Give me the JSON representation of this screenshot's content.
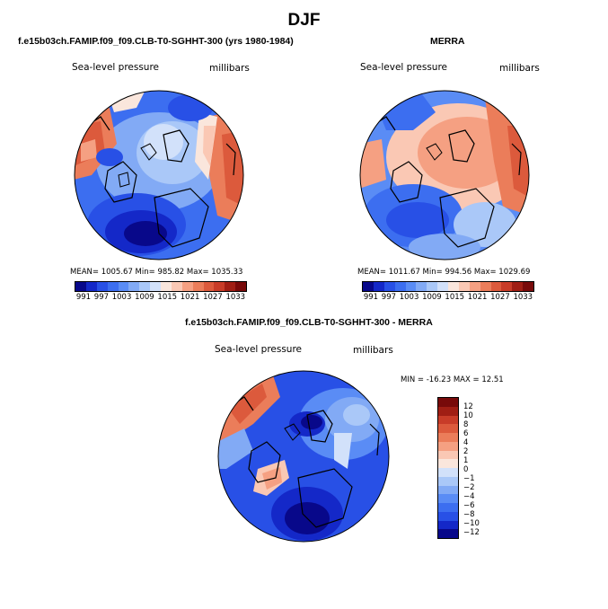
{
  "figure": {
    "title": "DJF"
  },
  "left_panel": {
    "subtitle": "f.e15b03ch.FAMIP.f09_f09.CLB-T0-SGHHT-300 (yrs 1980-1984)",
    "variable": "Sea-level pressure",
    "units": "millibars",
    "stats": "MEAN= 1005.67   Min= 985.82   Max= 1035.33"
  },
  "right_panel": {
    "subtitle": "MERRA",
    "variable": "Sea-level pressure",
    "units": "millibars",
    "stats": "MEAN= 1011.67   Min= 994.56   Max= 1029.69"
  },
  "bottom_panel": {
    "subtitle": "f.e15b03ch.FAMIP.f09_f09.CLB-T0-SGHHT-300 - MERRA",
    "variable": "Sea-level pressure",
    "units": "millibars",
    "stats": "MIN = -16.23  MAX =  12.51"
  },
  "colorbar_abs": {
    "ticks": [
      "991",
      "997",
      "1003",
      "1009",
      "1015",
      "1021",
      "1027",
      "1033"
    ],
    "colors": [
      "#08088a",
      "#1428c8",
      "#2850e6",
      "#3c6ef0",
      "#5a8cf5",
      "#82aaf5",
      "#aac8f8",
      "#d2e1fa",
      "#fae6dc",
      "#fac8b4",
      "#f5a082",
      "#eb7d5a",
      "#dc5a3c",
      "#c83c28",
      "#a01e14",
      "#780a0a"
    ]
  },
  "colorbar_diff": {
    "ticks": [
      "12",
      "10",
      "8",
      "6",
      "4",
      "2",
      "1",
      "0",
      "−1",
      "−2",
      "−4",
      "−6",
      "−8",
      "−10",
      "−12"
    ],
    "colors": [
      "#780a0a",
      "#a01e14",
      "#c83c28",
      "#dc5a3c",
      "#eb7d5a",
      "#f5a082",
      "#fac8b4",
      "#fae6dc",
      "#d2e1fa",
      "#aac8f8",
      "#82aaf5",
      "#5a8cf5",
      "#3c6ef0",
      "#2850e6",
      "#1428c8",
      "#08088a"
    ]
  }
}
